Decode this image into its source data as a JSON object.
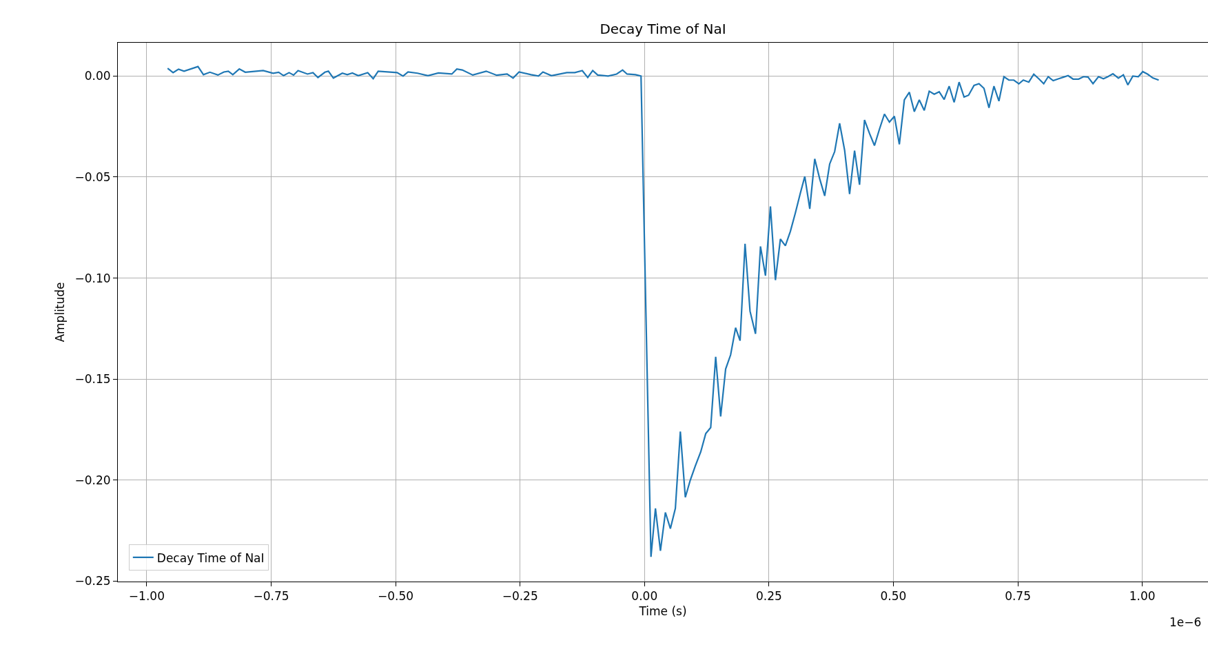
{
  "chart_data": {
    "type": "line",
    "title": "Decay Time of NaI",
    "xlabel": "Time (s)",
    "ylabel": "Amplitude",
    "annotations": [
      "1e−6"
    ],
    "xlim": [
      -1.058,
      1.132
    ],
    "ylim": [
      -0.2502,
      0.0165
    ],
    "xticks": [
      {
        "value": -1.0,
        "label": "−1.00"
      },
      {
        "value": -0.75,
        "label": "−0.75"
      },
      {
        "value": -0.5,
        "label": "−0.50"
      },
      {
        "value": -0.25,
        "label": "−0.25"
      },
      {
        "value": 0,
        "label": "0.00"
      },
      {
        "value": 0.25,
        "label": "0.25"
      },
      {
        "value": 0.5,
        "label": "0.50"
      },
      {
        "value": 0.75,
        "label": "0.75"
      },
      {
        "value": 1.0,
        "label": "1.00"
      }
    ],
    "yticks": [
      {
        "value": 0,
        "label": "0.00"
      },
      {
        "value": -0.05,
        "label": "−0.05"
      },
      {
        "value": -0.1,
        "label": "−0.10"
      },
      {
        "value": -0.15,
        "label": "−0.15"
      },
      {
        "value": -0.2,
        "label": "−0.20"
      },
      {
        "value": -0.25,
        "label": "−0.25"
      }
    ],
    "grid": true,
    "legend": "bottom left",
    "line_style": "solid",
    "marker": "none",
    "series": [
      {
        "name": "Decay Time of NaI",
        "color": "#1f77b4",
        "x": [
          -0.958,
          -0.947,
          -0.936,
          -0.925,
          -0.897,
          -0.886,
          -0.873,
          -0.857,
          -0.845,
          -0.836,
          -0.827,
          -0.814,
          -0.802,
          -0.766,
          -0.746,
          -0.735,
          -0.725,
          -0.714,
          -0.705,
          -0.696,
          -0.677,
          -0.666,
          -0.656,
          -0.642,
          -0.635,
          -0.625,
          -0.607,
          -0.597,
          -0.587,
          -0.575,
          -0.556,
          -0.545,
          -0.535,
          -0.497,
          -0.485,
          -0.475,
          -0.456,
          -0.435,
          -0.414,
          -0.387,
          -0.377,
          -0.366,
          -0.345,
          -0.318,
          -0.297,
          -0.276,
          -0.264,
          -0.252,
          -0.228,
          -0.213,
          -0.204,
          -0.187,
          -0.156,
          -0.14,
          -0.125,
          -0.114,
          -0.104,
          -0.094,
          -0.073,
          -0.056,
          -0.044,
          -0.035,
          -0.018,
          -0.007,
          0.013,
          0.022,
          0.032,
          0.042,
          0.052,
          0.062,
          0.072,
          0.082,
          0.092,
          0.102,
          0.113,
          0.123,
          0.133,
          0.143,
          0.153,
          0.163,
          0.173,
          0.183,
          0.192,
          0.202,
          0.212,
          0.223,
          0.233,
          0.243,
          0.253,
          0.263,
          0.273,
          0.283,
          0.293,
          0.303,
          0.313,
          0.322,
          0.332,
          0.342,
          0.352,
          0.362,
          0.372,
          0.382,
          0.392,
          0.402,
          0.412,
          0.422,
          0.432,
          0.442,
          0.452,
          0.462,
          0.472,
          0.482,
          0.492,
          0.502,
          0.512,
          0.522,
          0.532,
          0.542,
          0.552,
          0.562,
          0.572,
          0.582,
          0.592,
          0.602,
          0.612,
          0.622,
          0.632,
          0.642,
          0.651,
          0.662,
          0.672,
          0.682,
          0.692,
          0.702,
          0.712,
          0.722,
          0.732,
          0.742,
          0.752,
          0.761,
          0.772,
          0.782,
          0.792,
          0.802,
          0.811,
          0.821,
          0.832,
          0.842,
          0.851,
          0.861,
          0.872,
          0.882,
          0.891,
          0.901,
          0.912,
          0.922,
          0.931,
          0.941,
          0.952,
          0.962,
          0.971,
          0.981,
          0.992,
          1.001,
          1.011,
          1.021,
          1.033
        ],
        "values": [
          0.0038,
          0.0017,
          0.0034,
          0.0024,
          0.0047,
          0.0007,
          0.0019,
          0.0005,
          0.002,
          0.0024,
          0.0007,
          0.0035,
          0.0019,
          0.0027,
          0.0014,
          0.0019,
          0.0002,
          0.0017,
          0.0005,
          0.0027,
          0.001,
          0.0017,
          -0.0007,
          0.0019,
          0.0024,
          -0.001,
          0.0014,
          0.0007,
          0.0015,
          0.0002,
          0.0017,
          -0.0013,
          0.0024,
          0.0017,
          0.0,
          0.002,
          0.0014,
          0.0002,
          0.0015,
          0.001,
          0.0035,
          0.003,
          0.0005,
          0.0024,
          0.0004,
          0.001,
          -0.001,
          0.002,
          0.0007,
          0.0,
          0.002,
          0.0002,
          0.0017,
          0.0017,
          0.0027,
          -0.0007,
          0.0027,
          0.0005,
          0.0,
          0.001,
          0.003,
          0.001,
          0.0007,
          0.0,
          -0.238,
          -0.214,
          -0.235,
          -0.216,
          -0.224,
          -0.214,
          -0.176,
          -0.2085,
          -0.2,
          -0.193,
          -0.186,
          -0.177,
          -0.174,
          -0.139,
          -0.1685,
          -0.145,
          -0.138,
          -0.1246,
          -0.131,
          -0.083,
          -0.1164,
          -0.1276,
          -0.0843,
          -0.0988,
          -0.0645,
          -0.101,
          -0.0807,
          -0.084,
          -0.0769,
          -0.0678,
          -0.058,
          -0.0497,
          -0.0657,
          -0.041,
          -0.0509,
          -0.0593,
          -0.0435,
          -0.0374,
          -0.0234,
          -0.0367,
          -0.0584,
          -0.0369,
          -0.0538,
          -0.0217,
          -0.0284,
          -0.0344,
          -0.0263,
          -0.0188,
          -0.0228,
          -0.0199,
          -0.0338,
          -0.0118,
          -0.008,
          -0.0176,
          -0.0118,
          -0.017,
          -0.0075,
          -0.009,
          -0.0078,
          -0.0116,
          -0.005,
          -0.013,
          -0.003,
          -0.0104,
          -0.0095,
          -0.0046,
          -0.0038,
          -0.0061,
          -0.0157,
          -0.005,
          -0.0124,
          -0.0003,
          -0.002,
          -0.002,
          -0.0038,
          -0.002,
          -0.003,
          0.0009,
          -0.0013,
          -0.0038,
          -0.0003,
          -0.0023,
          -0.0013,
          -0.0005,
          0.0002,
          -0.0015,
          -0.0015,
          -0.0003,
          -0.0005,
          -0.0038,
          -0.0003,
          -0.0013,
          -0.0003,
          0.0011,
          -0.001,
          0.0006,
          -0.0044,
          0.0,
          -0.0003,
          0.0022,
          0.0009,
          -0.0009,
          -0.002
        ]
      }
    ]
  }
}
